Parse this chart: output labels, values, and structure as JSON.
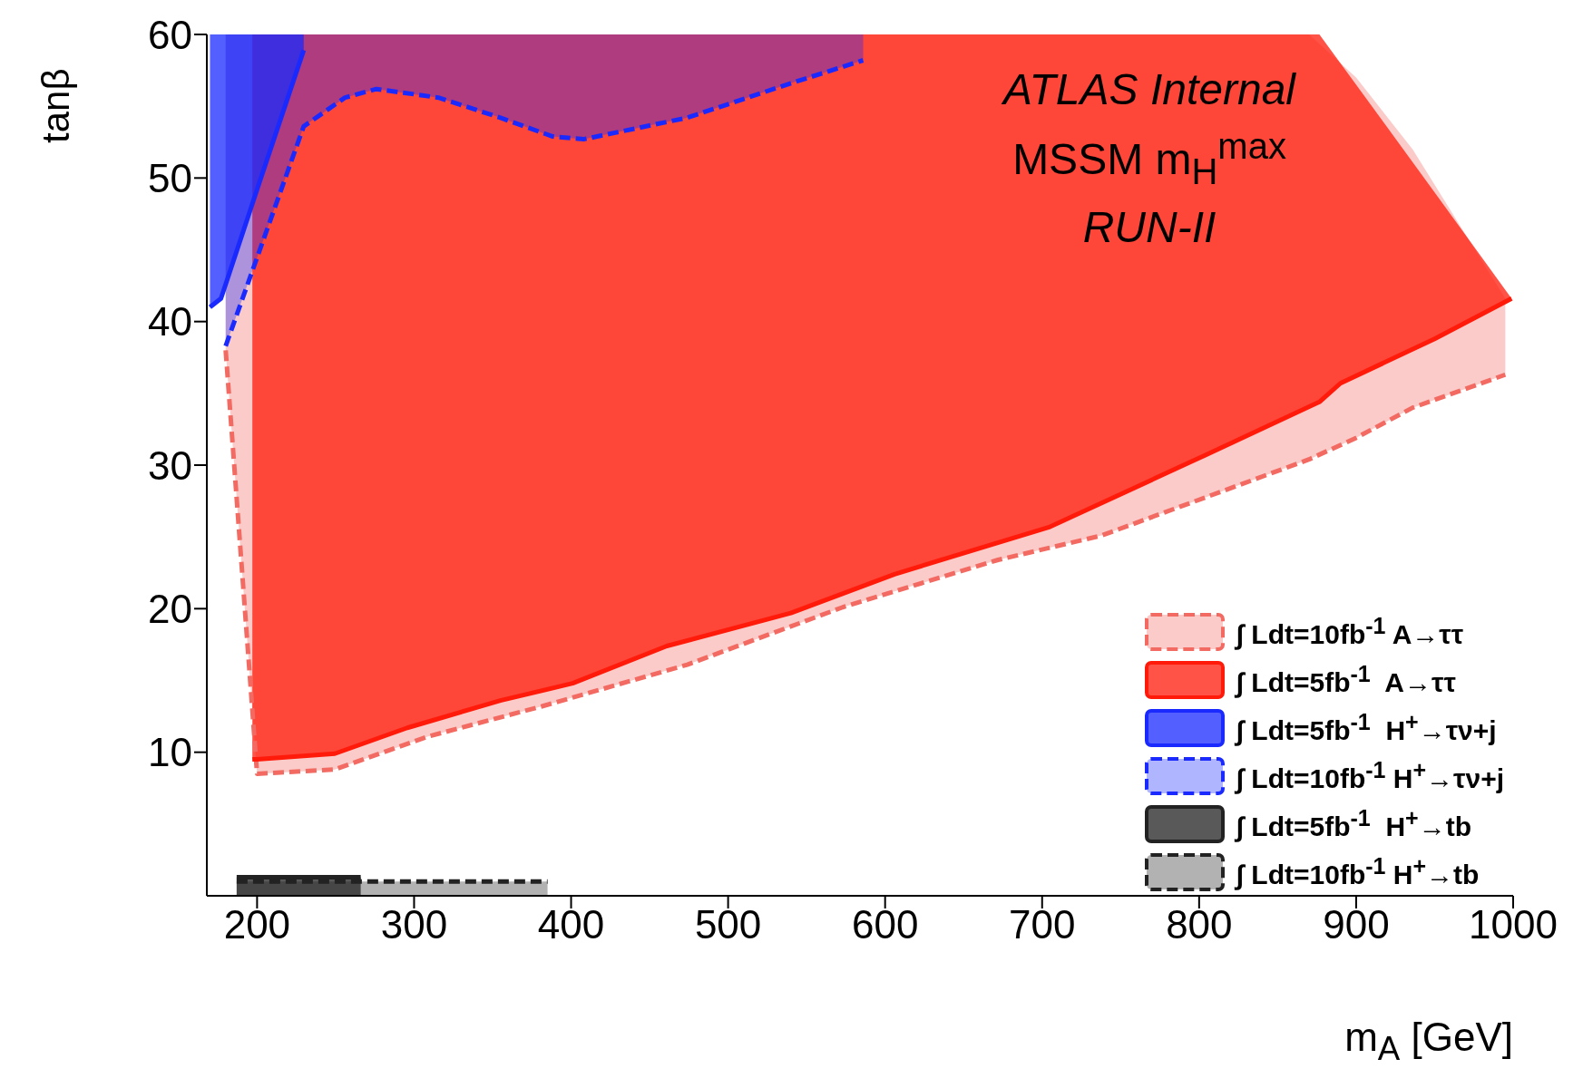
{
  "chart_data": {
    "type": "line",
    "xlabel": "m$_{A}$ [GeV]",
    "ylabel": "tanβ",
    "xlim": [
      168,
      1000
    ],
    "ylim": [
      0,
      60
    ],
    "xticks": [
      200,
      300,
      400,
      500,
      600,
      700,
      800,
      900,
      1000
    ],
    "yticks": [
      10,
      20,
      30,
      40,
      50,
      60
    ],
    "legend": "bottom right",
    "marker": "none",
    "annotations": [
      "ATLAS Internal",
      "MSSM m$_{H}$$^{max}$",
      "RUN-II"
    ],
    "series": [
      {
        "name": "∫ Ldt=10fb$^{-1}$ A→ττ",
        "color": "#f26a62",
        "line_style": "dashed",
        "x": [
          180,
          200,
          249.5,
          309,
          381.5,
          474,
          573,
          672,
          738,
          870,
          900,
          936,
          995
        ],
        "values": [
          38,
          8.5,
          8.8,
          11.1,
          13.2,
          16.1,
          20.1,
          23.4,
          25.1,
          30.4,
          31.9,
          34,
          36.3
        ],
        "lower": [
          38,
          8.5,
          8.8,
          11.1,
          13.2,
          16.1,
          20.1,
          23.4,
          25.1,
          30.4,
          31.9,
          34,
          36.3
        ],
        "upper": [
          60,
          60,
          60,
          60,
          60,
          60,
          60,
          60,
          60,
          60,
          57,
          52,
          41.6
        ]
      },
      {
        "name": "∫ Ldt=5fb$^{-1}$  A→ττ",
        "color": "#ff1a0a",
        "line_style": "solid",
        "x": [
          197,
          200,
          249.5,
          295.7,
          355,
          401,
          461,
          540,
          606,
          705,
          804,
          876.6,
          890,
          950,
          999
        ],
        "values": [
          9.5,
          9.5,
          9.9,
          11.7,
          13.6,
          14.8,
          17.4,
          19.7,
          22.4,
          25.7,
          30.7,
          34.4,
          35.7,
          38.8,
          41.6
        ],
        "lower": [
          9.5,
          9.5,
          9.9,
          11.7,
          13.6,
          14.8,
          17.4,
          19.7,
          22.4,
          25.7,
          30.7,
          34.4,
          35.7,
          38.8,
          41.6
        ],
        "upper": [
          60,
          60,
          60,
          60,
          60,
          60,
          60,
          60,
          60,
          60,
          60,
          60,
          58,
          49,
          41.6
        ]
      },
      {
        "name": "∫ Ldt=5fb$^{-1}$  H$^{+}$→τν+j",
        "color": "#1a2aff",
        "line_style": "solid",
        "x": [
          170,
          177,
          200,
          229.7
        ],
        "values": [
          41,
          41.6,
          49.2,
          58.9
        ],
        "lower": [
          41,
          41.6,
          49.2,
          58.9
        ],
        "upper": [
          60,
          60,
          60,
          60
        ]
      },
      {
        "name": "∫ Ldt=10fb$^{-1}$ H$^{+}$→τν+j",
        "color": "#1a2aff",
        "line_style": "dashed",
        "x": [
          180,
          229.7,
          256,
          276,
          315.5,
          355,
          388,
          408,
          474,
          540,
          586
        ],
        "values": [
          38.3,
          53.6,
          55.6,
          56.2,
          55.6,
          54.2,
          52.9,
          52.7,
          54.2,
          56.6,
          58.2
        ],
        "lower": [
          38.3,
          53.6,
          55.6,
          56.2,
          55.6,
          54.2,
          52.9,
          52.7,
          54.2,
          56.6,
          58.2
        ],
        "upper": [
          60,
          60,
          60,
          60,
          60,
          60,
          60,
          60,
          60,
          60,
          60
        ]
      },
      {
        "name": "∫ Ldt=5fb$^{-1}$  H$^{+}$→tb",
        "color": "#222222",
        "line_style": "solid",
        "x": [
          187,
          266
        ],
        "values": [
          1.3,
          1.3
        ],
        "lower": [
          0,
          0
        ],
        "upper": [
          1.3,
          1.3
        ]
      },
      {
        "name": "∫ Ldt=10fb$^{-1}$ H$^{+}$→tb",
        "color": "#222222",
        "line_style": "dashed",
        "x": [
          187,
          385
        ],
        "values": [
          1,
          1
        ],
        "lower": [
          0,
          0
        ],
        "upper": [
          1,
          1
        ]
      }
    ]
  }
}
